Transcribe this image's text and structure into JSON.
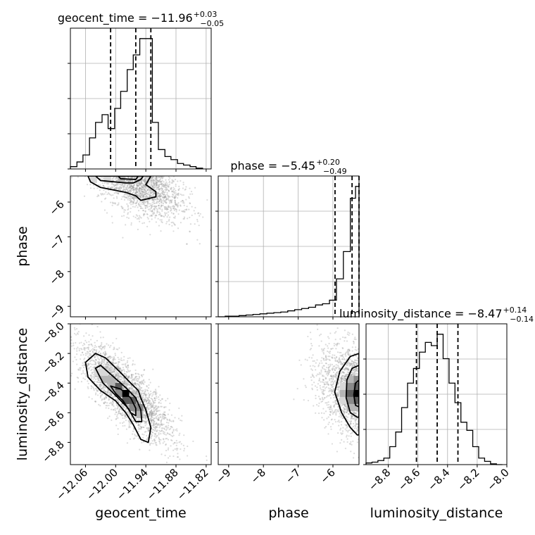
{
  "chart_data": {
    "type": "corner",
    "parameters": [
      "geocent_time",
      "phase",
      "luminosity_distance"
    ],
    "ranges": {
      "geocent_time": [
        -12.09,
        -11.81
      ],
      "phase": [
        -9.3,
        -5.25
      ],
      "luminosity_distance": [
        -8.95,
        -8.0
      ]
    },
    "ticks": {
      "geocent_time": [
        -12.06,
        -12.0,
        -11.94,
        -11.88,
        -11.82
      ],
      "phase": [
        -9,
        -8,
        -7,
        -6
      ],
      "luminosity_distance": [
        -8.8,
        -8.6,
        -8.4,
        -8.2,
        -8.0
      ]
    },
    "tick_labels": {
      "geocent_time": [
        "−12.06",
        "−12.00",
        "−11.94",
        "−11.88",
        "−11.82"
      ],
      "phase": [
        "−9",
        "−8",
        "−7",
        "−6"
      ],
      "luminosity_distance": [
        "−8.8",
        "−8.6",
        "−8.4",
        "−8.2",
        "−8.0"
      ]
    },
    "marginals": [
      {
        "parameter": "geocent_time",
        "title_prefix": "geocent_time = −11.96",
        "title_plus": "+0.03",
        "title_minus": "−0.05",
        "quantiles": [
          -12.01,
          -11.96,
          -11.93
        ],
        "bin_edges": [
          -12.09,
          -12.077,
          -12.065,
          -12.052,
          -12.04,
          -12.027,
          -12.015,
          -12.002,
          -11.99,
          -11.977,
          -11.965,
          -11.952,
          -11.94,
          -11.927,
          -11.915,
          -11.902,
          -11.89,
          -11.877,
          -11.865,
          -11.852,
          -11.84,
          -11.827
        ],
        "counts": [
          3,
          9,
          18,
          40,
          60,
          70,
          52,
          78,
          100,
          128,
          147,
          168,
          168,
          60,
          25,
          16,
          12,
          7,
          5,
          3,
          1
        ]
      },
      {
        "parameter": "phase",
        "title_prefix": "phase = −5.45",
        "title_plus": "+0.20",
        "title_minus": "−0.49",
        "quantiles": [
          -5.94,
          -5.45,
          -5.25
        ],
        "bin_edges": [
          -9.3,
          -9.1,
          -8.9,
          -8.7,
          -8.5,
          -8.3,
          -8.1,
          -7.9,
          -7.7,
          -7.5,
          -7.3,
          -7.1,
          -6.9,
          -6.7,
          -6.5,
          -6.3,
          -6.1,
          -5.9,
          -5.7,
          -5.5,
          -5.35,
          -5.25
        ],
        "counts": [
          0,
          0.5,
          0.5,
          1,
          1.5,
          2,
          2.5,
          3,
          3.5,
          4,
          5,
          6,
          7,
          8,
          10,
          11,
          14,
          32,
          55,
          100,
          110
        ]
      },
      {
        "parameter": "luminosity_distance",
        "title_prefix": "luminosity_distance = −8.47",
        "title_plus": "+0.14",
        "title_minus": "−0.14",
        "quantiles": [
          -8.61,
          -8.47,
          -8.33
        ],
        "bin_edges": [
          -8.95,
          -8.91,
          -8.87,
          -8.83,
          -8.79,
          -8.75,
          -8.71,
          -8.67,
          -8.63,
          -8.59,
          -8.55,
          -8.51,
          -8.47,
          -8.43,
          -8.39,
          -8.35,
          -8.31,
          -8.27,
          -8.23,
          -8.19,
          -8.15,
          -8.11,
          -8.07,
          -8.03
        ],
        "counts": [
          2,
          3,
          5,
          8,
          22,
          40,
          70,
          100,
          118,
          138,
          150,
          146,
          160,
          130,
          100,
          76,
          52,
          42,
          22,
          8,
          4,
          1,
          0
        ]
      }
    ],
    "pairs": [
      {
        "x": "geocent_time",
        "y": "phase",
        "peak": [
          -11.96,
          -5.35
        ],
        "samples": 2600
      },
      {
        "x": "geocent_time",
        "y": "luminosity_distance",
        "peak": [
          -11.98,
          -8.47
        ],
        "samples": 2600
      },
      {
        "x": "phase",
        "y": "luminosity_distance",
        "peak": [
          -5.3,
          -8.47
        ],
        "samples": 2600
      }
    ],
    "axis_labels": {
      "x": [
        "geocent_time",
        "phase",
        "luminosity_distance"
      ],
      "y": [
        "phase",
        "luminosity_distance"
      ]
    },
    "grid": true
  },
  "colors": {
    "hist": "#000000",
    "grid": "#b0b0b0",
    "scatter": "#999999",
    "density_dark": "#000000",
    "density_light": "#ffffff"
  }
}
